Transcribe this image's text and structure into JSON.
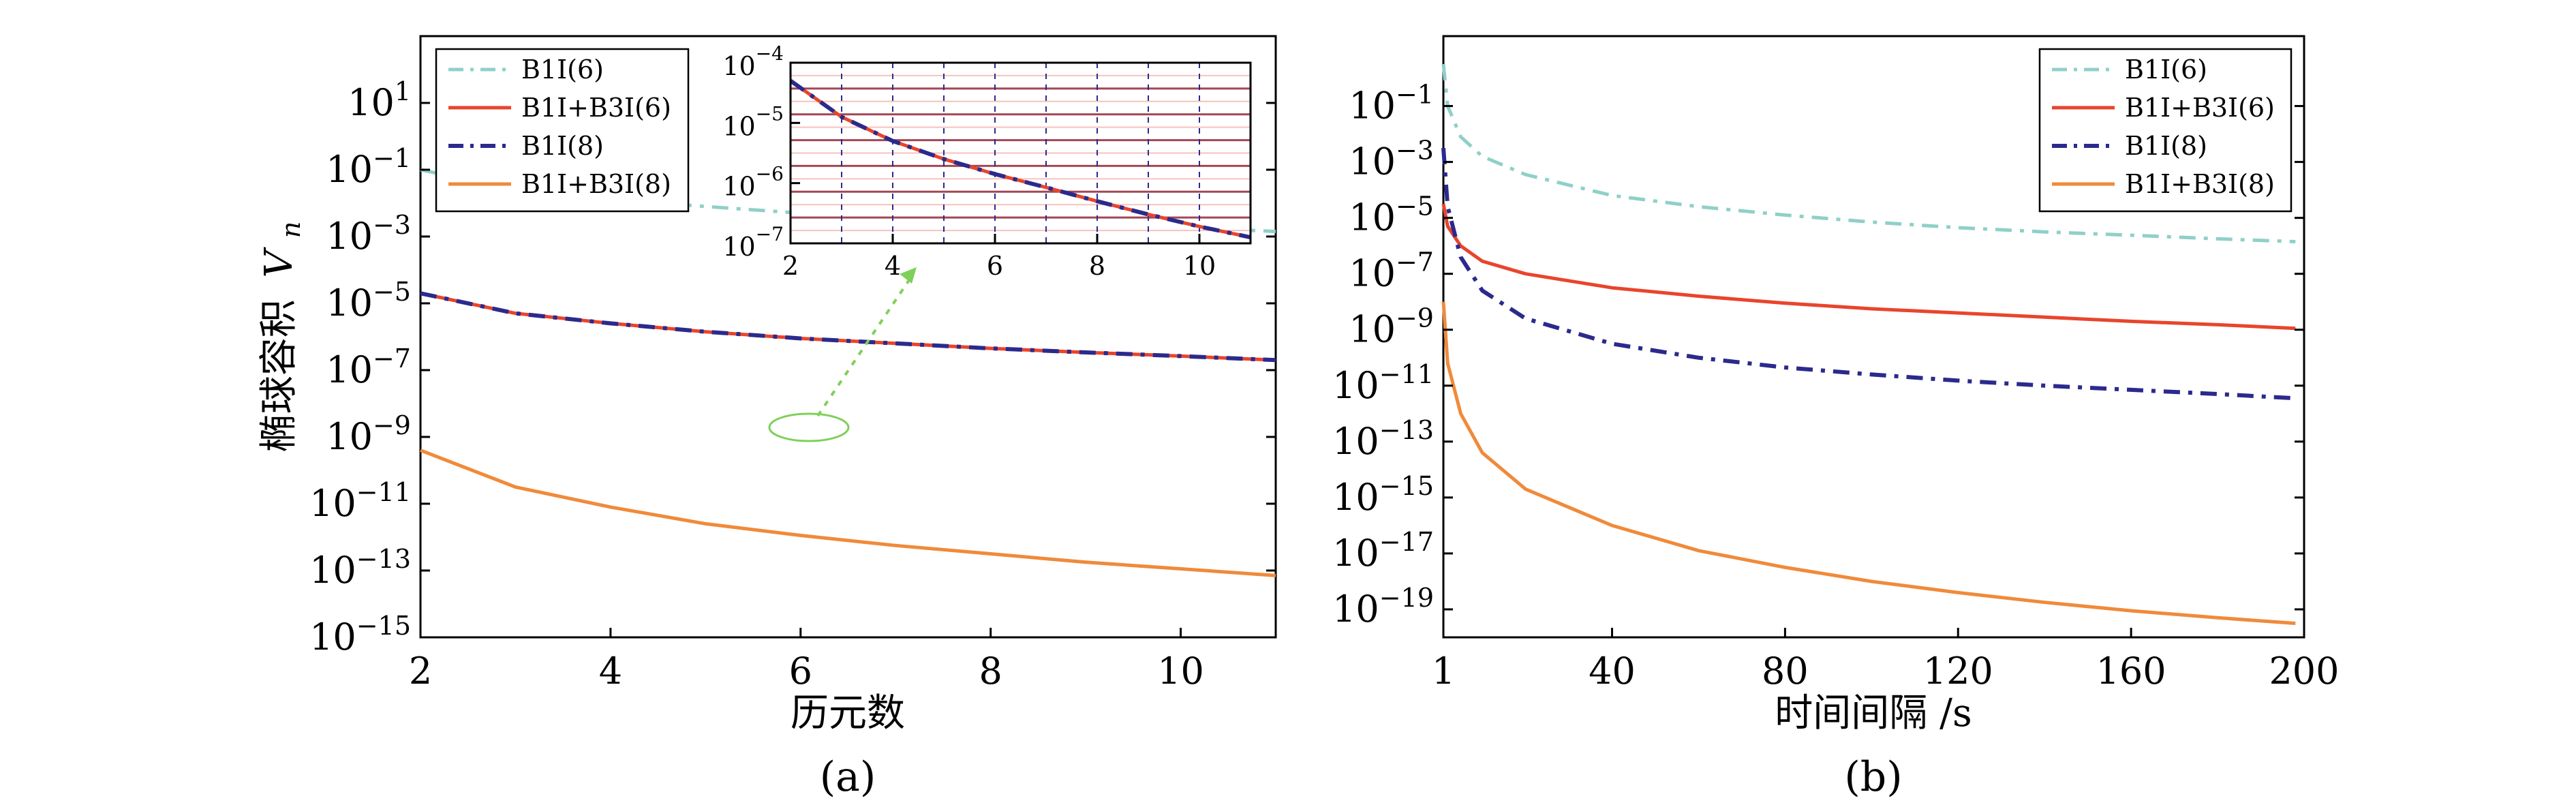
{
  "figure": {
    "panel_a_caption": "(a)",
    "panel_b_caption": "(b)"
  },
  "series_styles": {
    "B1I(6)": {
      "color": "#8fd0c8",
      "dash": "24 12 6 12",
      "width": 5
    },
    "B1I+B3I(6)": {
      "color": "#e8452c",
      "dash": "",
      "width": 5
    },
    "B1I(8)": {
      "color": "#2b2a8c",
      "dash": "24 12 6 12",
      "width": 6
    },
    "B1I+B3I(8)": {
      "color": "#f08a3a",
      "dash": "",
      "width": 5
    }
  },
  "chart_data": [
    {
      "type": "line",
      "panel": "a",
      "xlabel": "历元数",
      "ylabel_main": "椭球容积",
      "ylabel_var": "V",
      "ylabel_sub": "n",
      "xlim": [
        2,
        11
      ],
      "ylim_log10": [
        -15,
        3
      ],
      "yscale": "log",
      "xticks": [
        2,
        4,
        6,
        8,
        10
      ],
      "yticks_exp": [
        1,
        -1,
        -3,
        -5,
        -7,
        -9,
        -11,
        -13,
        -15
      ],
      "legend_position": "top-left",
      "series": [
        {
          "name": "B1I(6)",
          "x": [
            2,
            3,
            4,
            5,
            6,
            7,
            8,
            9,
            10,
            11
          ],
          "log10_y": [
            -1.0,
            -1.6,
            -1.9,
            -2.1,
            -2.3,
            -2.42,
            -2.53,
            -2.62,
            -2.72,
            -2.85
          ]
        },
        {
          "name": "B1I+B3I(6)",
          "x": [
            2,
            3,
            4,
            5,
            6,
            7,
            8,
            9,
            10,
            11
          ],
          "log10_y": [
            -4.7,
            -5.3,
            -5.6,
            -5.85,
            -6.05,
            -6.2,
            -6.35,
            -6.47,
            -6.58,
            -6.7
          ]
        },
        {
          "name": "B1I(8)",
          "x": [
            2,
            3,
            4,
            5,
            6,
            7,
            8,
            9,
            10,
            11
          ],
          "log10_y": [
            -4.7,
            -5.3,
            -5.6,
            -5.85,
            -6.05,
            -6.2,
            -6.35,
            -6.47,
            -6.58,
            -6.7
          ]
        },
        {
          "name": "B1I+B3I(8)",
          "x": [
            2,
            3,
            4,
            5,
            6,
            7,
            8,
            9,
            10,
            11
          ],
          "log10_y": [
            -9.4,
            -10.5,
            -11.1,
            -11.6,
            -11.95,
            -12.25,
            -12.5,
            -12.75,
            -12.95,
            -13.15
          ]
        }
      ],
      "inset": {
        "xlim": [
          2,
          11
        ],
        "ylim_log10": [
          -7,
          -4
        ],
        "xticks": [
          2,
          4,
          6,
          8,
          10
        ],
        "yticks_exp": [
          -4,
          -5,
          -6,
          -7
        ],
        "series": [
          {
            "name": "B1I+B3I(6)",
            "x": [
              2,
              3,
              4,
              5,
              6,
              7,
              8,
              9,
              10,
              11
            ],
            "log10_y": [
              -4.3,
              -4.9,
              -5.3,
              -5.6,
              -5.85,
              -6.07,
              -6.3,
              -6.52,
              -6.72,
              -6.9
            ]
          },
          {
            "name": "B1I(8)",
            "x": [
              2,
              3,
              4,
              5,
              6,
              7,
              8,
              9,
              10,
              11
            ],
            "log10_y": [
              -4.3,
              -4.9,
              -5.3,
              -5.6,
              -5.85,
              -6.07,
              -6.3,
              -6.52,
              -6.72,
              -6.9
            ]
          }
        ]
      }
    },
    {
      "type": "line",
      "panel": "b",
      "xlabel": "时间间隔 /s",
      "xlim": [
        1,
        200
      ],
      "ylim_log10": [
        -20,
        1.5
      ],
      "yscale": "log",
      "xticks": [
        1,
        40,
        80,
        120,
        160,
        200
      ],
      "yticks_exp": [
        -1,
        -3,
        -5,
        -7,
        -9,
        -11,
        -13,
        -15,
        -17,
        -19
      ],
      "legend_position": "top-right",
      "series": [
        {
          "name": "B1I(6)",
          "x": [
            1,
            2,
            5,
            10,
            20,
            40,
            60,
            80,
            100,
            120,
            140,
            160,
            180,
            198
          ],
          "log10_y": [
            0.5,
            -1.0,
            -2.1,
            -2.8,
            -3.45,
            -4.2,
            -4.6,
            -4.9,
            -5.15,
            -5.35,
            -5.5,
            -5.62,
            -5.75,
            -5.85
          ]
        },
        {
          "name": "B1I+B3I(6)",
          "x": [
            1,
            2,
            5,
            10,
            20,
            40,
            60,
            80,
            100,
            120,
            140,
            160,
            180,
            198
          ],
          "log10_y": [
            -4.5,
            -5.3,
            -6.0,
            -6.55,
            -7.0,
            -7.5,
            -7.8,
            -8.05,
            -8.25,
            -8.4,
            -8.55,
            -8.7,
            -8.82,
            -8.95
          ]
        },
        {
          "name": "B1I(8)",
          "x": [
            1,
            2,
            5,
            10,
            20,
            40,
            60,
            80,
            100,
            120,
            140,
            160,
            180,
            198
          ],
          "log10_y": [
            -2.5,
            -4.6,
            -6.4,
            -7.6,
            -8.6,
            -9.5,
            -10.0,
            -10.35,
            -10.6,
            -10.82,
            -11.0,
            -11.15,
            -11.3,
            -11.45
          ]
        },
        {
          "name": "B1I+B3I(8)",
          "x": [
            1,
            2,
            5,
            10,
            20,
            40,
            60,
            80,
            100,
            120,
            140,
            160,
            180,
            198
          ],
          "log10_y": [
            -8.0,
            -10.2,
            -12.0,
            -13.4,
            -14.7,
            -16.0,
            -16.9,
            -17.5,
            -18.0,
            -18.4,
            -18.75,
            -19.05,
            -19.3,
            -19.5
          ]
        }
      ]
    }
  ]
}
